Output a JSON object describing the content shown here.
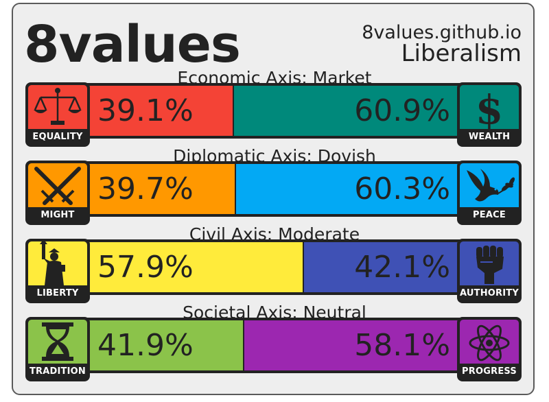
{
  "header": {
    "brand": "8values",
    "site": "8values.github.io",
    "ideology": "Liberalism"
  },
  "axes": [
    {
      "title": "Economic Axis: Market",
      "left": {
        "label": "EQUALITY",
        "percent": "39.1%",
        "value": 39.1,
        "color": "#f44336",
        "icon": "scales-icon"
      },
      "right": {
        "label": "WEALTH",
        "percent": "60.9%",
        "value": 60.9,
        "color": "#00897b",
        "icon": "dollar-icon"
      }
    },
    {
      "title": "Diplomatic Axis: Dovish",
      "left": {
        "label": "MIGHT",
        "percent": "39.7%",
        "value": 39.7,
        "color": "#ff9800",
        "icon": "crossed-swords-icon"
      },
      "right": {
        "label": "PEACE",
        "percent": "60.3%",
        "value": 60.3,
        "color": "#03a9f4",
        "icon": "dove-icon"
      }
    },
    {
      "title": "Civil Axis: Moderate",
      "left": {
        "label": "LIBERTY",
        "percent": "57.9%",
        "value": 57.9,
        "color": "#ffeb3b",
        "icon": "statue-of-liberty-icon"
      },
      "right": {
        "label": "AUTHORITY",
        "percent": "42.1%",
        "value": 42.1,
        "color": "#3f51b5",
        "icon": "raised-fist-icon"
      }
    },
    {
      "title": "Societal Axis: Neutral",
      "left": {
        "label": "TRADITION",
        "percent": "41.9%",
        "value": 41.9,
        "color": "#8bc34a",
        "icon": "hourglass-icon"
      },
      "right": {
        "label": "PROGRESS",
        "percent": "58.1%",
        "value": 58.1,
        "color": "#9c27b0",
        "icon": "atom-icon"
      }
    }
  ]
}
